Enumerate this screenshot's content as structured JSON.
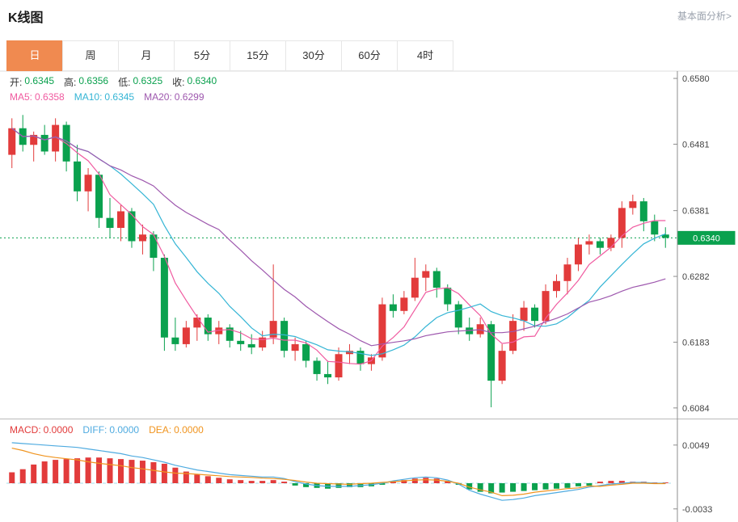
{
  "header": {
    "title": "K线图",
    "analysis_link": "基本面分析>"
  },
  "tabs": [
    {
      "label": "日",
      "active": true
    },
    {
      "label": "周",
      "active": false
    },
    {
      "label": "月",
      "active": false
    },
    {
      "label": "5分",
      "active": false
    },
    {
      "label": "15分",
      "active": false
    },
    {
      "label": "30分",
      "active": false
    },
    {
      "label": "60分",
      "active": false
    },
    {
      "label": "4时",
      "active": false
    }
  ],
  "legend": {
    "ohlc_value_color": "#0aa14e",
    "ohlc": [
      {
        "label": "开:",
        "value": "0.6345"
      },
      {
        "label": "高:",
        "value": "0.6356"
      },
      {
        "label": "低:",
        "value": "0.6325"
      },
      {
        "label": "收:",
        "value": "0.6340"
      }
    ],
    "ma": [
      {
        "label": "MA5:",
        "value": "0.6358",
        "color": "#f05ba0"
      },
      {
        "label": "MA10:",
        "value": "0.6345",
        "color": "#35b5d5"
      },
      {
        "label": "MA20:",
        "value": "0.6299",
        "color": "#9e58ae"
      }
    ],
    "macd": [
      {
        "label": "MACD:",
        "value": "0.0000",
        "color": "#e23b3b"
      },
      {
        "label": "DIFF:",
        "value": "0.0000",
        "color": "#4fabe0"
      },
      {
        "label": "DEA:",
        "value": "0.0000",
        "color": "#f0941f"
      }
    ]
  },
  "colors": {
    "up": "#e23b3b",
    "down": "#0aa14e",
    "ma5": "#f05ba0",
    "ma10": "#35b5d5",
    "ma20": "#9e58ae",
    "diff": "#4fabe0",
    "dea": "#f0941f",
    "zero_line": "#a5dce8",
    "price_line": "#0aa14e",
    "badge_bg": "#0aa14e",
    "badge_text": "#ffffff",
    "axis_text": "#444444",
    "axis_line": "#8c8c8c",
    "panel_border": "#dddddd",
    "tab_active_bg": "#f08a50"
  },
  "chart_data": {
    "type": "candlestick+macd",
    "title": "K线图",
    "legend_position": "top-left",
    "grid": false,
    "price_axis": {
      "ticks": [
        "0.6580",
        "0.6481",
        "0.6381",
        "0.6282",
        "0.6183",
        "0.6084"
      ],
      "tick_values": [
        0.658,
        0.6481,
        0.6381,
        0.6282,
        0.6183,
        0.6084
      ],
      "range": [
        0.6068,
        0.6591
      ],
      "current_price": "0.6340",
      "current_value": 0.634
    },
    "ohlc_display": {
      "open": 0.6345,
      "high": 0.6356,
      "low": 0.6325,
      "close": 0.634
    },
    "ma_display": {
      "MA5": 0.6358,
      "MA10": 0.6345,
      "MA20": 0.6299
    },
    "ma_periods": [
      5,
      10,
      20
    ],
    "candles": [
      [
        0.6465,
        0.652,
        0.6445,
        0.6505
      ],
      [
        0.6505,
        0.6525,
        0.647,
        0.648
      ],
      [
        0.648,
        0.65,
        0.6455,
        0.6495
      ],
      [
        0.6495,
        0.651,
        0.6465,
        0.647
      ],
      [
        0.647,
        0.652,
        0.6455,
        0.651
      ],
      [
        0.651,
        0.6515,
        0.644,
        0.6455
      ],
      [
        0.6455,
        0.648,
        0.6395,
        0.641
      ],
      [
        0.641,
        0.6445,
        0.638,
        0.6435
      ],
      [
        0.6435,
        0.644,
        0.6355,
        0.637
      ],
      [
        0.637,
        0.64,
        0.634,
        0.6355
      ],
      [
        0.6355,
        0.639,
        0.6335,
        0.638
      ],
      [
        0.638,
        0.6385,
        0.6325,
        0.6335
      ],
      [
        0.6335,
        0.636,
        0.6315,
        0.6345
      ],
      [
        0.6345,
        0.635,
        0.629,
        0.631
      ],
      [
        0.631,
        0.6315,
        0.617,
        0.619
      ],
      [
        0.619,
        0.622,
        0.617,
        0.618
      ],
      [
        0.618,
        0.6215,
        0.6175,
        0.6205
      ],
      [
        0.6205,
        0.6225,
        0.6185,
        0.622
      ],
      [
        0.622,
        0.6225,
        0.6185,
        0.6195
      ],
      [
        0.6195,
        0.6215,
        0.618,
        0.6205
      ],
      [
        0.6205,
        0.621,
        0.6175,
        0.6185
      ],
      [
        0.6185,
        0.62,
        0.617,
        0.618
      ],
      [
        0.618,
        0.6195,
        0.6165,
        0.6175
      ],
      [
        0.6175,
        0.62,
        0.617,
        0.619
      ],
      [
        0.619,
        0.63,
        0.618,
        0.6215
      ],
      [
        0.6215,
        0.622,
        0.616,
        0.617
      ],
      [
        0.617,
        0.619,
        0.6155,
        0.618
      ],
      [
        0.618,
        0.6185,
        0.6145,
        0.6155
      ],
      [
        0.6155,
        0.616,
        0.6125,
        0.6135
      ],
      [
        0.6135,
        0.6155,
        0.612,
        0.613
      ],
      [
        0.613,
        0.6175,
        0.6125,
        0.6165
      ],
      [
        0.6165,
        0.618,
        0.615,
        0.617
      ],
      [
        0.617,
        0.6175,
        0.614,
        0.615
      ],
      [
        0.615,
        0.6165,
        0.614,
        0.616
      ],
      [
        0.616,
        0.625,
        0.6155,
        0.624
      ],
      [
        0.624,
        0.6255,
        0.622,
        0.623
      ],
      [
        0.623,
        0.626,
        0.6225,
        0.625
      ],
      [
        0.625,
        0.631,
        0.6245,
        0.628
      ],
      [
        0.628,
        0.63,
        0.626,
        0.629
      ],
      [
        0.629,
        0.6295,
        0.625,
        0.6265
      ],
      [
        0.6265,
        0.627,
        0.623,
        0.624
      ],
      [
        0.624,
        0.6245,
        0.6195,
        0.6205
      ],
      [
        0.6205,
        0.622,
        0.6185,
        0.6195
      ],
      [
        0.6195,
        0.622,
        0.619,
        0.621
      ],
      [
        0.621,
        0.6215,
        0.6085,
        0.6125
      ],
      [
        0.6125,
        0.618,
        0.612,
        0.617
      ],
      [
        0.617,
        0.6225,
        0.6165,
        0.6215
      ],
      [
        0.6215,
        0.6245,
        0.62,
        0.6235
      ],
      [
        0.6235,
        0.624,
        0.6205,
        0.6215
      ],
      [
        0.6215,
        0.627,
        0.621,
        0.626
      ],
      [
        0.626,
        0.6285,
        0.625,
        0.6275
      ],
      [
        0.6275,
        0.631,
        0.6255,
        0.63
      ],
      [
        0.63,
        0.634,
        0.629,
        0.633
      ],
      [
        0.633,
        0.6345,
        0.6315,
        0.6335
      ],
      [
        0.6335,
        0.634,
        0.6315,
        0.6325
      ],
      [
        0.6325,
        0.6345,
        0.632,
        0.634
      ],
      [
        0.634,
        0.6395,
        0.6325,
        0.6385
      ],
      [
        0.6385,
        0.6405,
        0.6375,
        0.6395
      ],
      [
        0.6395,
        0.64,
        0.635,
        0.6365
      ],
      [
        0.6365,
        0.6375,
        0.6335,
        0.6345
      ],
      [
        0.6345,
        0.6356,
        0.6325,
        0.634
      ]
    ],
    "macd": {
      "ticks": [
        "0.0049",
        "-0.0033"
      ],
      "tick_values": [
        0.0049,
        -0.0033
      ],
      "display": {
        "MACD": 0.0,
        "DIFF": 0.0,
        "DEA": 0.0
      },
      "hist": [
        0.0014,
        0.0018,
        0.0024,
        0.0028,
        0.003,
        0.0031,
        0.0032,
        0.0033,
        0.0033,
        0.0032,
        0.0031,
        0.003,
        0.0029,
        0.0027,
        0.0025,
        0.002,
        0.0015,
        0.0011,
        0.0009,
        0.0007,
        0.0005,
        0.0004,
        0.0003,
        0.0003,
        0.0004,
        0.0002,
        -0.0003,
        -0.0005,
        -0.0006,
        -0.0007,
        -0.0006,
        -0.0005,
        -0.0005,
        -0.0004,
        -0.0002,
        0.0002,
        0.0004,
        0.0006,
        0.0007,
        0.0006,
        0.0003,
        -0.0002,
        -0.0008,
        -0.0011,
        -0.0013,
        -0.0012,
        -0.0011,
        -0.001,
        -0.0009,
        -0.0008,
        -0.0007,
        -0.0006,
        -0.0004,
        -0.0003,
        0.0002,
        0.0003,
        0.0003,
        0.0002,
        0.0002,
        0.0001,
        0.0001
      ],
      "diff": [
        0.0052,
        0.0051,
        0.005,
        0.0049,
        0.0048,
        0.0047,
        0.0046,
        0.0044,
        0.0042,
        0.004,
        0.0038,
        0.0035,
        0.0033,
        0.003,
        0.0027,
        0.0023,
        0.002,
        0.0017,
        0.0015,
        0.0013,
        0.0011,
        0.001,
        0.0009,
        0.0008,
        0.0008,
        0.0006,
        0.0002,
        -0.0001,
        -0.0003,
        -0.0004,
        -0.0004,
        -0.0004,
        -0.0003,
        -0.0002,
        0.0,
        0.0003,
        0.0005,
        0.0007,
        0.0008,
        0.0007,
        0.0004,
        -0.0001,
        -0.0009,
        -0.0014,
        -0.0018,
        -0.0022,
        -0.0021,
        -0.0019,
        -0.0016,
        -0.0014,
        -0.0012,
        -0.001,
        -0.0008,
        -0.0005,
        -0.0003,
        -0.0001,
        0.0,
        0.0001,
        0.0001,
        0.0,
        0.0
      ]
    }
  }
}
